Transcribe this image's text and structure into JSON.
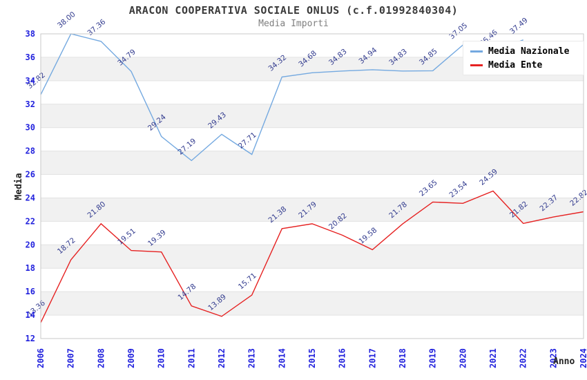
{
  "header": {
    "title": "ARACON COOPERATIVA SOCIALE ONLUS (c.f.01992840304)",
    "subtitle": "Media Importi"
  },
  "axes": {
    "y_title": "Media",
    "x_title": "Anno"
  },
  "legend": {
    "position": "top-right",
    "items": [
      {
        "label": "Media Nazionale",
        "color": "#74a9e0"
      },
      {
        "label": "Media Ente",
        "color": "#e62222"
      }
    ]
  },
  "chart_data": {
    "type": "line",
    "title": "ARACON COOPERATIVA SOCIALE ONLUS (c.f.01992840304)",
    "subtitle": "Media Importi",
    "xlabel": "Anno",
    "ylabel": "Media",
    "x": [
      2006,
      2007,
      2008,
      2009,
      2010,
      2011,
      2012,
      2013,
      2014,
      2015,
      2016,
      2017,
      2018,
      2019,
      2020,
      2021,
      2022,
      2023,
      2024
    ],
    "series": [
      {
        "name": "Media Nazionale",
        "color": "#74a9e0",
        "values": [
          32.82,
          38.0,
          37.36,
          34.79,
          29.24,
          27.19,
          29.43,
          27.71,
          34.32,
          34.68,
          34.83,
          34.94,
          34.83,
          34.85,
          37.05,
          36.46,
          37.49,
          null,
          null
        ]
      },
      {
        "name": "Media Ente",
        "color": "#e62222",
        "values": [
          13.36,
          18.72,
          21.8,
          19.51,
          19.39,
          14.78,
          13.89,
          15.71,
          21.38,
          21.79,
          20.82,
          19.58,
          21.78,
          23.65,
          23.54,
          24.59,
          21.82,
          22.37,
          22.82
        ]
      }
    ],
    "ylim": [
      12,
      38
    ],
    "ytick_step": 2,
    "grid": "horizontal-bands-alternating",
    "legend_position": "top-right",
    "point_labels": "values shown rotated next to each point, 2 decimals"
  },
  "colors": {
    "tick_label": "#2222dd",
    "point_label": "#333c8f",
    "band_gray": "#f1f1f1",
    "band_white": "#ffffff",
    "band_line": "#e2e2e2",
    "plot_border": "#c9c9c9",
    "axis_title": "#222222"
  }
}
